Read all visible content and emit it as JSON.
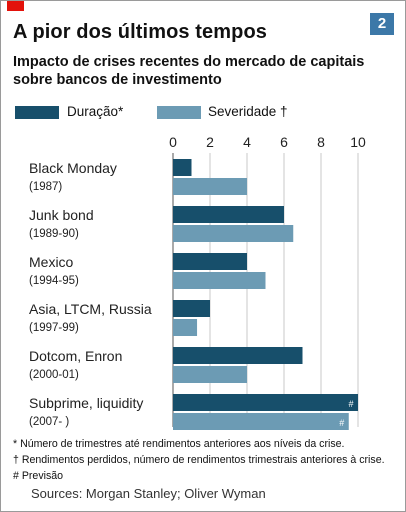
{
  "header": {
    "title": "A pior dos últimos tempos",
    "badge": "2",
    "subtitle": "Impacto de crises recentes do mercado de capitais sobre bancos de investimento"
  },
  "colors": {
    "duration": "#174f6b",
    "severity": "#6c9bb4",
    "accent": "#e3120b",
    "badge": "#3c78a8"
  },
  "chart_data": {
    "type": "bar",
    "orientation": "horizontal",
    "categories": [
      {
        "name": "Black Monday",
        "period": "(1987)"
      },
      {
        "name": "Junk bond",
        "period": "(1989-90)"
      },
      {
        "name": "Mexico",
        "period": "(1994-95)"
      },
      {
        "name": "Asia, LTCM, Russia",
        "period": "(1997-99)"
      },
      {
        "name": "Dotcom, Enron",
        "period": "(2000-01)"
      },
      {
        "name": "Subprime, liquidity",
        "period": "(2007- )"
      }
    ],
    "series": [
      {
        "name": "Duração*",
        "values": [
          1,
          6,
          4,
          2,
          7,
          10
        ]
      },
      {
        "name": "Severidade †",
        "values": [
          4,
          6.5,
          5,
          1.3,
          4,
          9.5
        ]
      }
    ],
    "forecast_marks": [
      "",
      "",
      "",
      "",
      "",
      "#"
    ],
    "xlim": [
      0,
      10
    ],
    "xticks": [
      "0",
      "2",
      "4",
      "6",
      "8",
      "10"
    ],
    "grid": true,
    "legend": "top"
  },
  "footnotes": {
    "duration": "* Número de trimestres  até  rendimentos anteriores aos níveis da crise.",
    "severity": "† Rendimentos perdidos, número de rendimentos trimestrais anteriores à crise.",
    "forecast": "# Previsão"
  },
  "source": "Sources: Morgan Stanley; Oliver Wyman"
}
